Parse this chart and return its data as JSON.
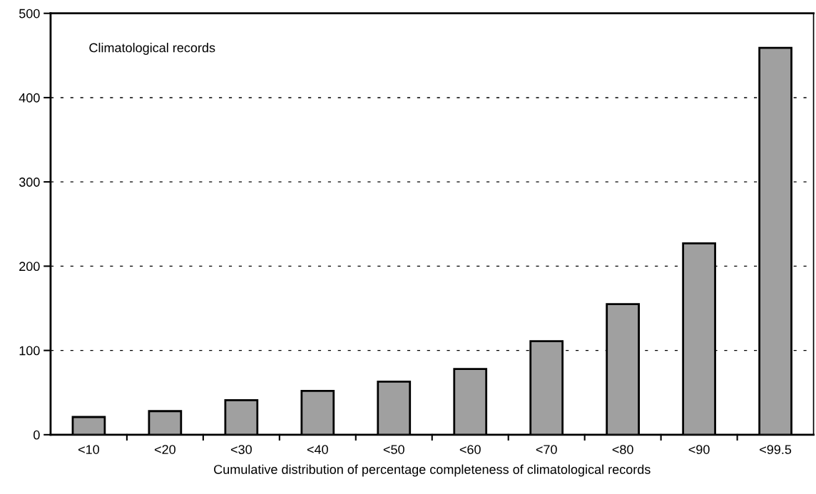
{
  "chart_data": {
    "type": "bar",
    "xlabel": "Cumulative distribution of percentage completeness of climatological records",
    "annotations": [
      "Climatological records"
    ],
    "categories": [
      "<10",
      "<20",
      "<30",
      "<40",
      "<50",
      "<60",
      "<70",
      "<80",
      "<90",
      "<99.5"
    ],
    "values": [
      21,
      28,
      41,
      52,
      63,
      78,
      111,
      155,
      227,
      459
    ],
    "color": "#a0a0a0",
    "ylim": [
      0,
      500
    ],
    "yticks": [
      0,
      100,
      200,
      300,
      400,
      500
    ],
    "grid": "y"
  }
}
